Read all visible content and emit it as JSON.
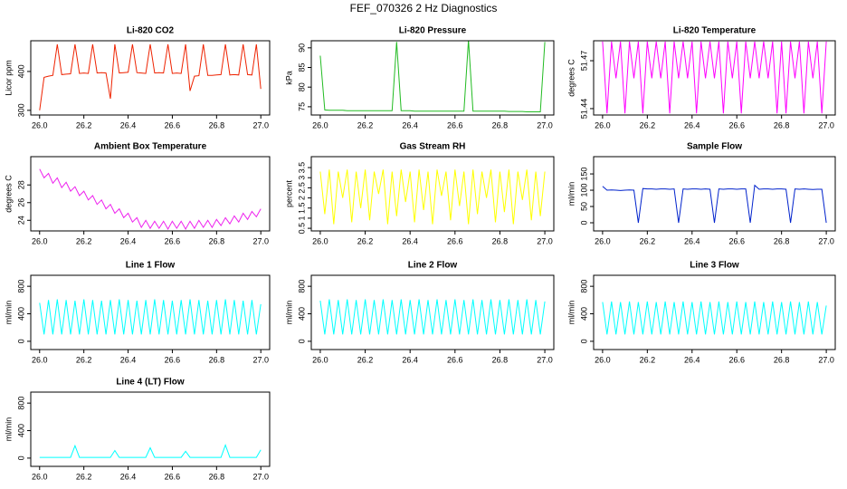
{
  "title": "FEF_070326  2 Hz Diagnostics",
  "chart_data": [
    {
      "type": "line",
      "title": "Li-820 CO2",
      "ylabel": "Licor ppm",
      "color": "#ee2200",
      "xlim": [
        25.96,
        27.04
      ],
      "ylim": [
        288,
        479
      ],
      "xticks": [
        {
          "value": 26,
          "label": "26.0"
        },
        26.2,
        26.4,
        26.6,
        26.8,
        {
          "value": 27,
          "label": "27.0"
        }
      ],
      "yticks": [
        300,
        400
      ],
      "x": [
        26,
        26.02,
        26.04,
        26.06,
        26.08,
        26.1,
        26.12,
        26.14,
        26.16,
        26.18,
        26.2,
        26.22,
        26.24,
        26.26,
        26.28,
        26.3,
        26.32,
        26.34,
        26.36,
        26.38,
        26.4,
        26.42,
        26.44,
        26.46,
        26.48,
        26.5,
        26.52,
        26.54,
        26.56,
        26.58,
        26.6,
        26.62,
        26.64,
        26.66,
        26.68,
        26.7,
        26.72,
        26.74,
        26.76,
        26.78,
        26.8,
        26.82,
        26.84,
        26.86,
        26.88,
        26.9,
        26.92,
        26.94,
        26.96,
        26.98,
        27
      ],
      "values": [
        300,
        385,
        388,
        390,
        470,
        392,
        393,
        394,
        470,
        395,
        396,
        395,
        470,
        396,
        397,
        396,
        330,
        470,
        396,
        397,
        398,
        470,
        397,
        396,
        395,
        470,
        396,
        397,
        396,
        470,
        395,
        396,
        395,
        470,
        350,
        388,
        389,
        470,
        390,
        390,
        391,
        392,
        470,
        391,
        392,
        391,
        470,
        392,
        391,
        470,
        355
      ]
    },
    {
      "type": "line",
      "title": "Li-820 Pressure",
      "ylabel": "kPa",
      "color": "#22bb22",
      "xlim": [
        25.96,
        27.04
      ],
      "ylim": [
        72.9,
        91.8
      ],
      "xticks": [
        {
          "value": 26,
          "label": "26.0"
        },
        26.2,
        26.4,
        26.6,
        26.8,
        {
          "value": 27,
          "label": "27.0"
        }
      ],
      "yticks": [
        75,
        80,
        85,
        90
      ],
      "x": [
        26,
        26.02,
        26.04,
        26.06,
        26.08,
        26.1,
        26.12,
        26.14,
        26.16,
        26.18,
        26.2,
        26.22,
        26.24,
        26.26,
        26.28,
        26.3,
        26.32,
        26.34,
        26.36,
        26.38,
        26.4,
        26.42,
        26.44,
        26.46,
        26.48,
        26.5,
        26.52,
        26.54,
        26.56,
        26.58,
        26.6,
        26.62,
        26.64,
        26.66,
        26.68,
        26.7,
        26.72,
        26.74,
        26.76,
        26.78,
        26.8,
        26.82,
        26.84,
        26.86,
        26.88,
        26.9,
        26.92,
        26.94,
        26.96,
        26.98,
        27
      ],
      "values": [
        88,
        74.2,
        74.1,
        74.1,
        74.1,
        74.1,
        74,
        74,
        74,
        74,
        74,
        74,
        74,
        74,
        74,
        74,
        74,
        91.5,
        74,
        74,
        74,
        73.9,
        73.9,
        73.9,
        73.9,
        73.9,
        73.9,
        73.9,
        73.9,
        73.9,
        73.9,
        73.9,
        73.9,
        92,
        73.9,
        73.9,
        73.9,
        73.9,
        73.9,
        73.9,
        73.9,
        73.9,
        73.8,
        73.8,
        73.8,
        73.8,
        73.7,
        73.7,
        73.7,
        73.7,
        91.5
      ]
    },
    {
      "type": "line",
      "title": "Li-820 Temperature",
      "ylabel": "degrees C",
      "color": "#ff00ff",
      "xlim": [
        25.96,
        27.04
      ],
      "ylim": [
        51.436,
        51.4825
      ],
      "xticks": [
        {
          "value": 26,
          "label": "26.0"
        },
        26.2,
        26.4,
        26.6,
        26.8,
        {
          "value": 27,
          "label": "27.0"
        }
      ],
      "yticks": [
        51.44,
        51.47
      ],
      "x": [
        26,
        26.02,
        26.04,
        26.06,
        26.08,
        26.1,
        26.12,
        26.14,
        26.16,
        26.18,
        26.2,
        26.22,
        26.24,
        26.26,
        26.28,
        26.3,
        26.32,
        26.34,
        26.36,
        26.38,
        26.4,
        26.42,
        26.44,
        26.46,
        26.48,
        26.5,
        26.52,
        26.54,
        26.56,
        26.58,
        26.6,
        26.62,
        26.64,
        26.66,
        26.68,
        26.7,
        26.72,
        26.74,
        26.76,
        26.78,
        26.8,
        26.82,
        26.84,
        26.86,
        26.88,
        26.9,
        26.92,
        26.94,
        26.96,
        26.98,
        27
      ],
      "values": [
        51.482,
        51.437,
        51.482,
        51.459,
        51.482,
        51.437,
        51.482,
        51.459,
        51.482,
        51.437,
        51.482,
        51.459,
        51.482,
        51.459,
        51.482,
        51.437,
        51.482,
        51.459,
        51.482,
        51.459,
        51.482,
        51.437,
        51.482,
        51.459,
        51.482,
        51.459,
        51.482,
        51.437,
        51.482,
        51.459,
        51.482,
        51.437,
        51.482,
        51.459,
        51.482,
        51.459,
        51.482,
        51.459,
        51.482,
        51.437,
        51.482,
        51.437,
        51.482,
        51.459,
        51.482,
        51.437,
        51.482,
        51.459,
        51.482,
        51.437,
        51.482
      ]
    },
    {
      "type": "line",
      "title": "Ambient Box Temperature",
      "ylabel": "degrees C",
      "color": "#ee22ee",
      "xlim": [
        25.96,
        27.04
      ],
      "ylim": [
        22.8,
        31.2
      ],
      "xticks": [
        {
          "value": 26,
          "label": "26.0"
        },
        26.2,
        26.4,
        26.6,
        26.8,
        {
          "value": 27,
          "label": "27.0"
        }
      ],
      "yticks": [
        24,
        26,
        28
      ],
      "x": [
        26,
        26.02,
        26.04,
        26.06,
        26.08,
        26.1,
        26.12,
        26.14,
        26.16,
        26.18,
        26.2,
        26.22,
        26.24,
        26.26,
        26.28,
        26.3,
        26.32,
        26.34,
        26.36,
        26.38,
        26.4,
        26.42,
        26.44,
        26.46,
        26.48,
        26.5,
        26.52,
        26.54,
        26.56,
        26.58,
        26.6,
        26.62,
        26.64,
        26.66,
        26.68,
        26.7,
        26.72,
        26.74,
        26.76,
        26.78,
        26.8,
        26.82,
        26.84,
        26.86,
        26.88,
        26.9,
        26.92,
        26.94,
        26.96,
        26.98,
        27
      ],
      "values": [
        29.8,
        28.8,
        29.3,
        28.2,
        28.8,
        27.7,
        28.3,
        27.3,
        27.8,
        26.8,
        27.3,
        26.3,
        26.8,
        25.8,
        26.3,
        25.3,
        25.8,
        24.8,
        25.3,
        24.3,
        24.8,
        23.8,
        24.3,
        23.2,
        24,
        23.1,
        23.9,
        23.1,
        23.9,
        23,
        23.9,
        23.1,
        23.9,
        23,
        23.9,
        23.1,
        24,
        23.2,
        24,
        23.2,
        24.1,
        23.4,
        24.3,
        23.6,
        24.5,
        23.8,
        24.8,
        24.1,
        25,
        24.4,
        25.3
      ]
    },
    {
      "type": "line",
      "title": "Gas Stream RH",
      "ylabel": "percent",
      "color": "#ffff00",
      "xlim": [
        25.96,
        27.04
      ],
      "ylim": [
        0.37,
        4.04
      ],
      "xticks": [
        {
          "value": 26,
          "label": "26.0"
        },
        26.2,
        26.4,
        26.6,
        26.8,
        {
          "value": 27,
          "label": "27.0"
        }
      ],
      "yticks": [
        0.5,
        1,
        1.5,
        2,
        2.5,
        3,
        3.5
      ],
      "x": [
        26,
        26.02,
        26.04,
        26.06,
        26.08,
        26.1,
        26.12,
        26.14,
        26.16,
        26.18,
        26.2,
        26.22,
        26.24,
        26.26,
        26.28,
        26.3,
        26.32,
        26.34,
        26.36,
        26.38,
        26.4,
        26.42,
        26.44,
        26.46,
        26.48,
        26.5,
        26.52,
        26.54,
        26.56,
        26.58,
        26.6,
        26.62,
        26.64,
        26.66,
        26.68,
        26.7,
        26.72,
        26.74,
        26.76,
        26.78,
        26.8,
        26.82,
        26.84,
        26.86,
        26.88,
        26.9,
        26.92,
        26.94,
        26.96,
        26.98,
        27
      ],
      "values": [
        3.3,
        1.2,
        3.4,
        0.7,
        3.3,
        2,
        3.4,
        0.8,
        3.3,
        1.5,
        3.4,
        0.9,
        3.3,
        2.2,
        3.4,
        0.7,
        3.3,
        1.1,
        3.4,
        1.8,
        3.3,
        0.8,
        3.4,
        1.4,
        3.3,
        0.7,
        3.4,
        2.1,
        3.3,
        0.9,
        3.4,
        1.6,
        3.3,
        0.7,
        3.4,
        1.2,
        3.3,
        2,
        3.4,
        0.8,
        3.3,
        1.3,
        3.4,
        0.7,
        3.3,
        1.9,
        3.4,
        0.9,
        3.3,
        1.1,
        3.3
      ]
    },
    {
      "type": "line",
      "title": "Sample Flow",
      "ylabel": "ml/min",
      "color": "#0022cc",
      "xlim": [
        25.96,
        27.04
      ],
      "ylim": [
        -25,
        203
      ],
      "xticks": [
        {
          "value": 26,
          "label": "26.0"
        },
        26.2,
        26.4,
        26.6,
        26.8,
        {
          "value": 27,
          "label": "27.0"
        }
      ],
      "yticks": [
        0,
        50,
        100,
        150
      ],
      "x": [
        26,
        26.02,
        26.04,
        26.06,
        26.08,
        26.1,
        26.12,
        26.14,
        26.16,
        26.18,
        26.2,
        26.22,
        26.24,
        26.26,
        26.28,
        26.3,
        26.32,
        26.34,
        26.36,
        26.38,
        26.4,
        26.42,
        26.44,
        26.46,
        26.48,
        26.5,
        26.52,
        26.54,
        26.56,
        26.58,
        26.6,
        26.62,
        26.64,
        26.66,
        26.68,
        26.7,
        26.72,
        26.74,
        26.76,
        26.78,
        26.8,
        26.82,
        26.84,
        26.86,
        26.88,
        26.9,
        26.92,
        26.94,
        26.96,
        26.98,
        27
      ],
      "values": [
        112,
        100,
        101,
        100,
        99,
        100,
        101,
        100,
        0,
        105,
        104,
        104,
        103,
        104,
        104,
        103,
        104,
        0,
        104,
        103,
        104,
        104,
        103,
        104,
        103,
        0,
        104,
        103,
        104,
        104,
        103,
        104,
        104,
        0,
        115,
        103,
        104,
        104,
        103,
        104,
        104,
        103,
        0,
        104,
        103,
        104,
        103,
        102,
        103,
        103,
        0
      ]
    },
    {
      "type": "line",
      "title": "Line 1 Flow",
      "ylabel": "ml/min",
      "color": "#00ffff",
      "xlim": [
        25.96,
        27.04
      ],
      "ylim": [
        -120,
        960
      ],
      "xticks": [
        {
          "value": 26,
          "label": "26.0"
        },
        26.2,
        26.4,
        26.6,
        26.8,
        {
          "value": 27,
          "label": "27.0"
        }
      ],
      "yticks": [
        0,
        400,
        800
      ],
      "x": [
        26,
        26.02,
        26.04,
        26.06,
        26.08,
        26.1,
        26.12,
        26.14,
        26.16,
        26.18,
        26.2,
        26.22,
        26.24,
        26.26,
        26.28,
        26.3,
        26.32,
        26.34,
        26.36,
        26.38,
        26.4,
        26.42,
        26.44,
        26.46,
        26.48,
        26.5,
        26.52,
        26.54,
        26.56,
        26.58,
        26.6,
        26.62,
        26.64,
        26.66,
        26.68,
        26.7,
        26.72,
        26.74,
        26.76,
        26.78,
        26.8,
        26.82,
        26.84,
        26.86,
        26.88,
        26.9,
        26.92,
        26.94,
        26.96,
        26.98,
        27
      ],
      "values": [
        560,
        100,
        600,
        100,
        610,
        100,
        600,
        100,
        590,
        100,
        610,
        100,
        600,
        100,
        590,
        100,
        600,
        100,
        610,
        100,
        600,
        100,
        590,
        100,
        600,
        100,
        610,
        100,
        600,
        100,
        590,
        100,
        600,
        100,
        610,
        100,
        600,
        100,
        590,
        100,
        600,
        100,
        610,
        100,
        600,
        100,
        590,
        100,
        600,
        100,
        540
      ]
    },
    {
      "type": "line",
      "title": "Line 2 Flow",
      "ylabel": "ml/min",
      "color": "#00ffff",
      "xlim": [
        25.96,
        27.04
      ],
      "ylim": [
        -120,
        960
      ],
      "xticks": [
        {
          "value": 26,
          "label": "26.0"
        },
        26.2,
        26.4,
        26.6,
        26.8,
        {
          "value": 27,
          "label": "27.0"
        }
      ],
      "yticks": [
        0,
        400,
        800
      ],
      "x": [
        26,
        26.02,
        26.04,
        26.06,
        26.08,
        26.1,
        26.12,
        26.14,
        26.16,
        26.18,
        26.2,
        26.22,
        26.24,
        26.26,
        26.28,
        26.3,
        26.32,
        26.34,
        26.36,
        26.38,
        26.4,
        26.42,
        26.44,
        26.46,
        26.48,
        26.5,
        26.52,
        26.54,
        26.56,
        26.58,
        26.6,
        26.62,
        26.64,
        26.66,
        26.68,
        26.7,
        26.72,
        26.74,
        26.76,
        26.78,
        26.8,
        26.82,
        26.84,
        26.86,
        26.88,
        26.9,
        26.92,
        26.94,
        26.96,
        26.98,
        27
      ],
      "values": [
        590,
        100,
        610,
        100,
        600,
        100,
        610,
        100,
        600,
        100,
        610,
        100,
        600,
        100,
        610,
        100,
        600,
        100,
        610,
        100,
        600,
        100,
        610,
        100,
        600,
        100,
        610,
        100,
        600,
        100,
        610,
        100,
        600,
        100,
        610,
        100,
        600,
        100,
        610,
        100,
        600,
        100,
        610,
        100,
        600,
        100,
        610,
        100,
        600,
        100,
        580
      ]
    },
    {
      "type": "line",
      "title": "Line 3 Flow",
      "ylabel": "ml/min",
      "color": "#00ffff",
      "xlim": [
        25.96,
        27.04
      ],
      "ylim": [
        -120,
        960
      ],
      "xticks": [
        {
          "value": 26,
          "label": "26.0"
        },
        26.2,
        26.4,
        26.6,
        26.8,
        {
          "value": 27,
          "label": "27.0"
        }
      ],
      "yticks": [
        0,
        400,
        800
      ],
      "x": [
        26,
        26.02,
        26.04,
        26.06,
        26.08,
        26.1,
        26.12,
        26.14,
        26.16,
        26.18,
        26.2,
        26.22,
        26.24,
        26.26,
        26.28,
        26.3,
        26.32,
        26.34,
        26.36,
        26.38,
        26.4,
        26.42,
        26.44,
        26.46,
        26.48,
        26.5,
        26.52,
        26.54,
        26.56,
        26.58,
        26.6,
        26.62,
        26.64,
        26.66,
        26.68,
        26.7,
        26.72,
        26.74,
        26.76,
        26.78,
        26.8,
        26.82,
        26.84,
        26.86,
        26.88,
        26.9,
        26.92,
        26.94,
        26.96,
        26.98,
        27
      ],
      "values": [
        570,
        100,
        580,
        100,
        570,
        100,
        580,
        100,
        570,
        100,
        580,
        100,
        570,
        100,
        580,
        100,
        570,
        100,
        580,
        100,
        570,
        100,
        580,
        100,
        570,
        100,
        580,
        100,
        570,
        100,
        580,
        100,
        570,
        100,
        580,
        100,
        570,
        100,
        580,
        100,
        570,
        100,
        580,
        100,
        570,
        100,
        580,
        100,
        570,
        100,
        520
      ]
    },
    {
      "type": "line",
      "title": "Line 4 (LT) Flow",
      "ylabel": "ml/min",
      "color": "#00ffff",
      "xlim": [
        25.96,
        27.04
      ],
      "ylim": [
        -120,
        960
      ],
      "xticks": [
        {
          "value": 26,
          "label": "26.0"
        },
        26.2,
        26.4,
        26.6,
        26.8,
        {
          "value": 27,
          "label": "27.0"
        }
      ],
      "yticks": [
        0,
        400,
        800
      ],
      "x": [
        26,
        26.02,
        26.04,
        26.06,
        26.08,
        26.1,
        26.12,
        26.14,
        26.16,
        26.18,
        26.2,
        26.22,
        26.24,
        26.26,
        26.28,
        26.3,
        26.32,
        26.34,
        26.36,
        26.38,
        26.4,
        26.42,
        26.44,
        26.46,
        26.48,
        26.5,
        26.52,
        26.54,
        26.56,
        26.58,
        26.6,
        26.62,
        26.64,
        26.66,
        26.68,
        26.7,
        26.72,
        26.74,
        26.76,
        26.78,
        26.8,
        26.82,
        26.84,
        26.86,
        26.88,
        26.9,
        26.92,
        26.94,
        26.96,
        26.98,
        27
      ],
      "values": [
        10,
        10,
        10,
        10,
        10,
        10,
        10,
        10,
        180,
        10,
        10,
        10,
        10,
        10,
        10,
        10,
        10,
        110,
        10,
        10,
        10,
        10,
        10,
        10,
        10,
        150,
        10,
        10,
        10,
        10,
        10,
        10,
        10,
        100,
        10,
        10,
        10,
        10,
        10,
        10,
        10,
        10,
        190,
        10,
        10,
        10,
        10,
        10,
        10,
        10,
        120
      ]
    }
  ]
}
